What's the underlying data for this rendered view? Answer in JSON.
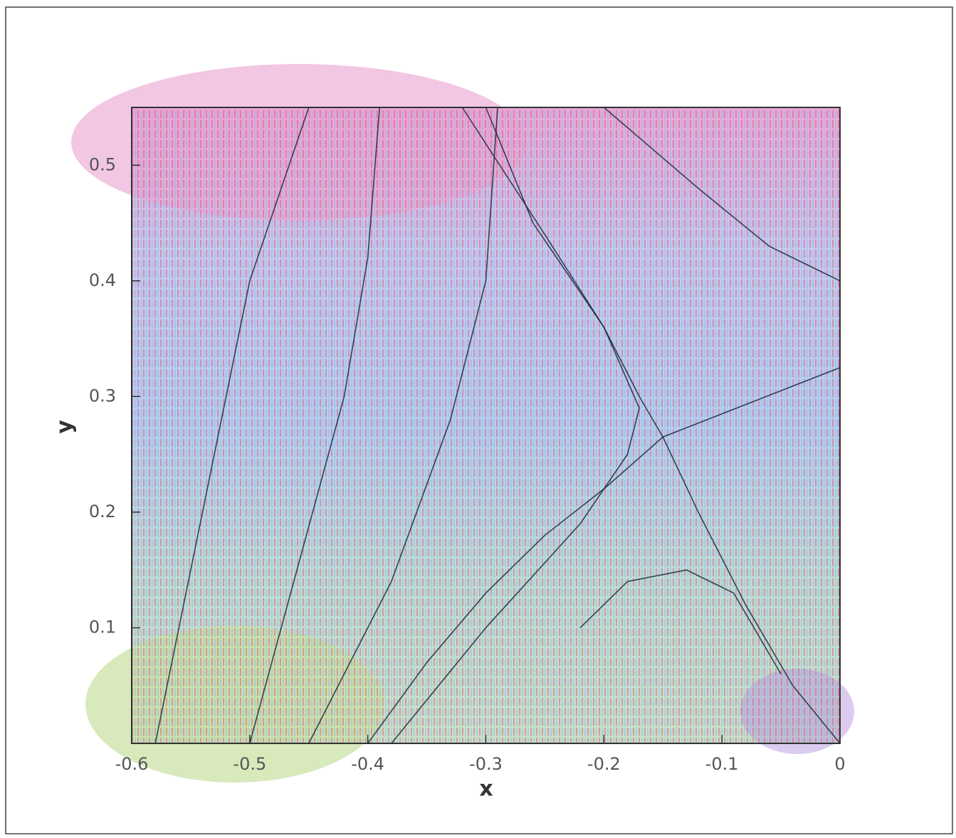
{
  "chart_data": {
    "type": "streamline",
    "x_label": "x",
    "y_label": "y",
    "xlim": [
      -0.6,
      0
    ],
    "ylim": [
      0,
      0.55
    ],
    "xticks": [
      -0.6,
      -0.5,
      -0.4,
      -0.3,
      -0.2,
      -0.1,
      0
    ],
    "yticks": [
      0.1,
      0.2,
      0.3,
      0.4,
      0.5
    ],
    "color": "#1a2a3a",
    "lines": [
      {
        "x": [
          -0.32,
          -0.25,
          -0.2,
          -0.17,
          -0.15
        ],
        "y": [
          0.55,
          0.44,
          0.36,
          0.3,
          0.265
        ]
      },
      {
        "x": [
          -0.15,
          -0.12,
          -0.08,
          -0.04,
          0
        ],
        "y": [
          0.265,
          0.2,
          0.12,
          0.05,
          0
        ]
      },
      {
        "x": [
          -0.4,
          -0.35,
          -0.3,
          -0.25,
          -0.2,
          -0.15
        ],
        "y": [
          0,
          0.07,
          0.13,
          0.18,
          0.22,
          0.265
        ]
      },
      {
        "x": [
          -0.15,
          -0.1,
          -0.05,
          0
        ],
        "y": [
          0.265,
          0.285,
          0.305,
          0.325
        ]
      },
      {
        "x": [
          -0.58,
          -0.54,
          -0.5,
          -0.45
        ],
        "y": [
          0,
          0.2,
          0.4,
          0.55
        ]
      },
      {
        "x": [
          -0.5,
          -0.46,
          -0.42,
          -0.4,
          -0.39
        ],
        "y": [
          0,
          0.15,
          0.3,
          0.42,
          0.55
        ]
      },
      {
        "x": [
          -0.45,
          -0.38,
          -0.33,
          -0.3,
          -0.29
        ],
        "y": [
          0,
          0.14,
          0.28,
          0.4,
          0.55
        ]
      },
      {
        "x": [
          -0.38,
          -0.3,
          -0.22,
          -0.18,
          -0.17,
          -0.2,
          -0.26,
          -0.3
        ],
        "y": [
          0,
          0.1,
          0.19,
          0.25,
          0.29,
          0.36,
          0.45,
          0.55
        ]
      },
      {
        "x": [
          -0.2,
          -0.12,
          -0.06,
          0
        ],
        "y": [
          0.55,
          0.48,
          0.43,
          0.4
        ]
      },
      {
        "x": [
          -0.22,
          -0.18,
          -0.13,
          -0.09,
          -0.05
        ],
        "y": [
          0.1,
          0.14,
          0.15,
          0.13,
          0.06
        ]
      }
    ]
  }
}
